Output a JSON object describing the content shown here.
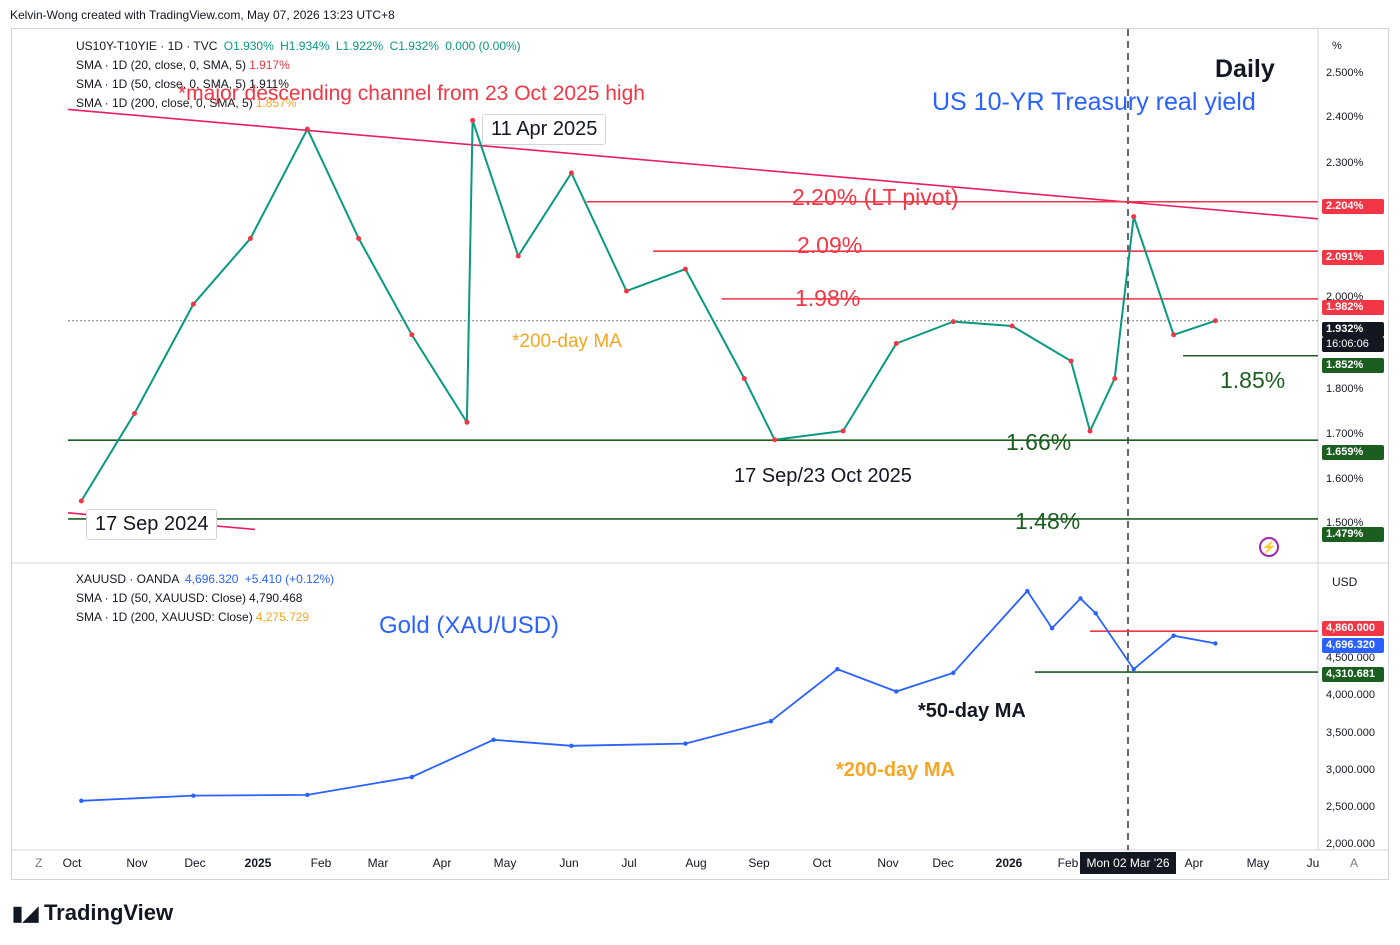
{
  "header": {
    "text": "Kelvin-Wong created with TradingView.com, May 07, 2026 13:23 UTC+8"
  },
  "top_pane": {
    "symbol_line": {
      "symbol": "US10Y-T10YIE · 1D · TVC",
      "o": "O1.930%",
      "h": "H1.934%",
      "l": "L1.922%",
      "c": "C1.932%",
      "chg": "0.000 (0.00%)"
    },
    "sma_lines": [
      {
        "label": "SMA · 1D (20, close, 0, SMA, 5)",
        "value": "1.917%",
        "color": "#f23645"
      },
      {
        "label": "SMA · 1D (50, close, 0, SMA, 5)",
        "value": "1.911%",
        "color": "#131722"
      },
      {
        "label": "SMA · 1D (200, close, 0, SMA, 5)",
        "value": "1.857%",
        "color": "#f5a623"
      }
    ],
    "unit": "%",
    "title_daily": "Daily",
    "title_main": "US 10-YR Treasury real yield",
    "annotations": {
      "channel": "*major descending channel from 23 Oct 2025 high",
      "ma200": "*200-day MA",
      "lt_pivot": "2.20% (LT pivot)",
      "r209": "2.09%",
      "r198": "1.98%",
      "s185": "1.85%",
      "s166": "1.66%",
      "s148": "1.48%",
      "low_label": "17 Sep/23 Oct 2025",
      "callout_apr": "11 Apr 2025",
      "callout_sep": "17 Sep 2024"
    },
    "price_axis": [
      "2.500%",
      "2.400%",
      "2.300%",
      "2.000%",
      "1.800%",
      "1.700%",
      "1.600%",
      "1.500%"
    ],
    "tags": [
      {
        "text": "2.204%",
        "color": "#f23645"
      },
      {
        "text": "2.091%",
        "color": "#f23645"
      },
      {
        "text": "1.982%",
        "color": "#f23645"
      },
      {
        "text": "1.932%",
        "color": "#131722"
      },
      {
        "text": "16:06:06",
        "color": "#131722"
      },
      {
        "text": "1.852%",
        "color": "#1b5e20"
      },
      {
        "text": "1.659%",
        "color": "#1b5e20"
      },
      {
        "text": "1.479%",
        "color": "#1b5e20"
      }
    ]
  },
  "bottom_pane": {
    "symbol_line": {
      "symbol": "XAUUSD · OANDA",
      "price": "4,696.320",
      "chg": "+5.410 (+0.12%)"
    },
    "sma_lines": [
      {
        "label": "SMA · 1D (50, XAUUSD: Close)",
        "value": "4,790.468",
        "color": "#131722"
      },
      {
        "label": "SMA · 1D (200, XAUUSD: Close)",
        "value": "4,275.729",
        "color": "#f5a623"
      }
    ],
    "unit": "USD",
    "title": "Gold (XAU/USD)",
    "annotations": {
      "ma50": "*50-day MA",
      "ma200": "*200-day MA"
    },
    "price_axis": [
      "4,500.000",
      "4,000.000",
      "3,500.000",
      "3,000.000",
      "2,500.000",
      "2,000.000"
    ],
    "tags": [
      {
        "text": "4,860.000",
        "color": "#f23645"
      },
      {
        "text": "4,696.320",
        "color": "#2962ff"
      },
      {
        "text": "4,310.681",
        "color": "#1b5e20"
      }
    ]
  },
  "x_axis": [
    "Oct",
    "Nov",
    "Dec",
    "2025",
    "Feb",
    "Mar",
    "Apr",
    "May",
    "Jun",
    "Jul",
    "Aug",
    "Sep",
    "Oct",
    "Nov",
    "Dec",
    "2026",
    "Feb",
    "Apr",
    "May",
    "Ju"
  ],
  "crosshair_label": "Mon 02 Mar '26",
  "logo": "TradingView",
  "corner_left": "Z",
  "corner_right": "A",
  "chart_data": [
    {
      "type": "line",
      "title": "US 10-YR Treasury real yield",
      "ylabel": "%",
      "ylim": [
        1.45,
        2.55
      ],
      "x": [
        "2024-09-17",
        "2024-10-15",
        "2024-11-15",
        "2024-12-15",
        "2025-01-14",
        "2025-02-10",
        "2025-03-10",
        "2025-04-08",
        "2025-04-11",
        "2025-05-05",
        "2025-06-02",
        "2025-07-01",
        "2025-08-01",
        "2025-09-01",
        "2025-09-17",
        "2025-10-23",
        "2025-11-20",
        "2025-12-20",
        "2026-01-20",
        "2026-02-20",
        "2026-03-02",
        "2026-03-15",
        "2026-03-25",
        "2026-04-15",
        "2026-05-07"
      ],
      "series": [
        {
          "values": [
            1.52,
            1.72,
            1.97,
            2.12,
            2.37,
            2.12,
            1.9,
            1.7,
            2.39,
            2.08,
            2.27,
            2.0,
            2.05,
            1.8,
            1.66,
            1.68,
            1.88,
            1.93,
            1.92,
            1.84,
            1.68,
            1.8,
            2.17,
            1.9,
            1.932
          ]
        }
      ],
      "levels": [
        2.204,
        2.091,
        1.982,
        1.852,
        1.659,
        1.479
      ]
    },
    {
      "type": "line",
      "title": "Gold (XAU/USD)",
      "ylabel": "USD",
      "ylim": [
        2000,
        5200
      ],
      "x": [
        "2024-09-17",
        "2024-11-15",
        "2025-01-14",
        "2025-03-10",
        "2025-04-22",
        "2025-06-02",
        "2025-08-01",
        "2025-09-15",
        "2025-10-20",
        "2025-11-20",
        "2025-12-20",
        "2026-01-28",
        "2026-02-10",
        "2026-02-25",
        "2026-03-05",
        "2026-03-25",
        "2026-04-15",
        "2026-05-07"
      ],
      "series": [
        {
          "values": [
            2580,
            2650,
            2660,
            2900,
            3400,
            3320,
            3350,
            3650,
            4350,
            4050,
            4300,
            5400,
            4900,
            5300,
            5100,
            4350,
            4800,
            4696.32
          ]
        }
      ],
      "levels": [
        4860.0,
        4310.681
      ]
    }
  ]
}
